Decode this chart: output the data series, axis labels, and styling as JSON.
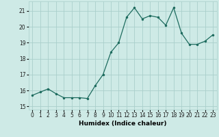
{
  "x": [
    0,
    1,
    2,
    3,
    4,
    5,
    6,
    7,
    8,
    9,
    10,
    11,
    12,
    13,
    14,
    15,
    16,
    17,
    18,
    19,
    20,
    21,
    22,
    23
  ],
  "y": [
    15.7,
    15.9,
    16.1,
    15.8,
    15.55,
    15.55,
    15.55,
    15.5,
    16.3,
    17.0,
    18.4,
    19.0,
    20.6,
    21.2,
    20.5,
    20.7,
    20.6,
    20.1,
    21.2,
    19.6,
    18.9,
    18.9,
    19.1,
    19.5
  ],
  "line_color": "#1d6b5e",
  "marker": ".",
  "bg_color": "#ceeae6",
  "grid_color": "#aacfcb",
  "xlabel": "Humidex (Indice chaleur)",
  "ylim": [
    14.8,
    21.6
  ],
  "xlim": [
    -0.5,
    23.5
  ],
  "yticks": [
    15,
    16,
    17,
    18,
    19,
    20,
    21
  ],
  "xticks": [
    0,
    1,
    2,
    3,
    4,
    5,
    6,
    7,
    8,
    9,
    10,
    11,
    12,
    13,
    14,
    15,
    16,
    17,
    18,
    19,
    20,
    21,
    22,
    23
  ],
  "xlabel_fontsize": 6.5,
  "tick_fontsize": 5.5
}
